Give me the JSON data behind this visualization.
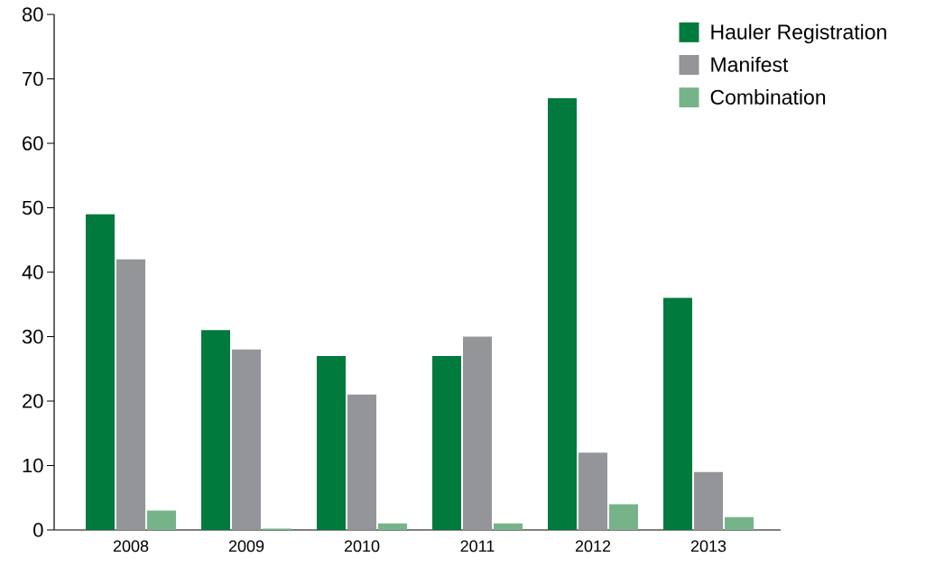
{
  "chart_data": {
    "type": "bar",
    "categories": [
      "2008",
      "2009",
      "2010",
      "2011",
      "2012",
      "2013"
    ],
    "series": [
      {
        "name": "Hauler Registration",
        "color": "#007a3d",
        "values": [
          49,
          31,
          27,
          27,
          67,
          36
        ]
      },
      {
        "name": "Manifest",
        "color": "#939598",
        "values": [
          42,
          28,
          21,
          30,
          12,
          9
        ]
      },
      {
        "name": "Combination",
        "color": "#77b389",
        "values": [
          3,
          0.2,
          1,
          1,
          4,
          2
        ]
      }
    ],
    "ylim": [
      0,
      80
    ],
    "yticks": [
      0,
      10,
      20,
      30,
      40,
      50,
      60,
      70,
      80
    ],
    "grid": false,
    "legend": "top right"
  }
}
